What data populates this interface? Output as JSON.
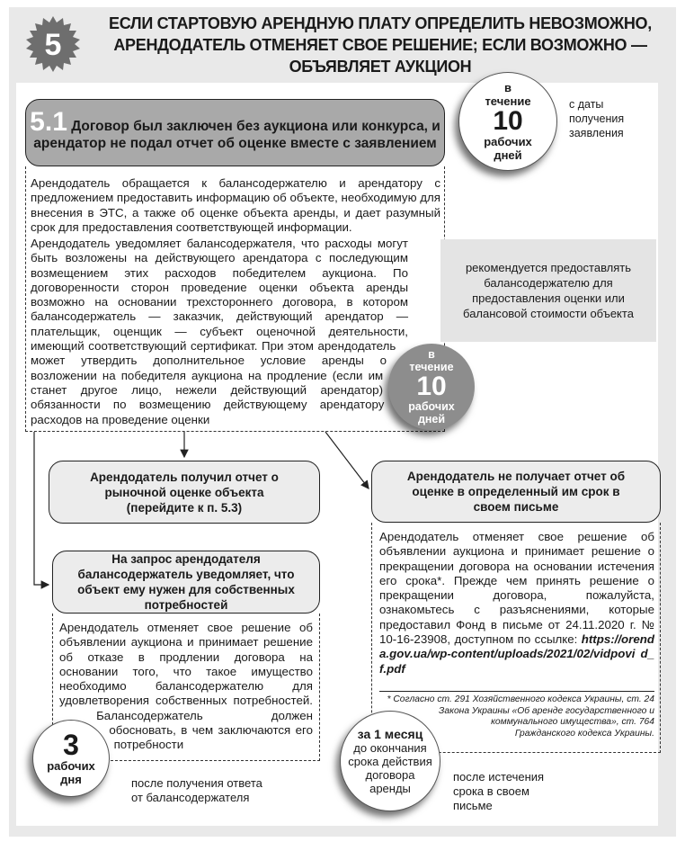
{
  "badge": {
    "number": "5"
  },
  "title": "ЕСЛИ СТАРТОВУЮ АРЕНДНУЮ ПЛАТУ ОПРЕДЕЛИТЬ НЕВОЗМОЖНО, АРЕНДОДАТЕЛЬ ОТМЕНЯЕТ СВОЕ РЕШЕНИЕ; ЕСЛИ ВОЗМОЖНО — ОБЪЯВЛЯЕТ АУКЦИОН",
  "section": {
    "number": "5.1",
    "heading": "Договор был заключен без аукциона или конкурса, и арендатор не подал отчет об оценке вместе с заявлением"
  },
  "main_text_1": "Арендодатель обращается к балансодержателю и арендатору с предложением предоставить информацию об объекте, необходимую для внесения в ЭТС, а также об оценке объекта аренды, и дает разумный срок для предоставления соответствующей информации.",
  "main_text_2": "Арендодатель уведомляет балансодержателя, что расходы могут быть возложены на действующего арендатора с последующим возмещением этих расходов победителем аукциона. По договоренности сторон проведение оценки объекта аренды возможно на основании трехстороннего договора, в котором балансодержатель — заказчик, действующий арендатор — плательщик, оценщик — субъект оценочной деятельности, имеющий соответствующий сертификат. При этом арендодатель может утвердить дополнительное условие аренды о возложении на победителя аукциона на продление (если им станет другое лицо, нежели действующий арендатор) обязанности по возмещению действующему арендатору расходов на проведение оценки",
  "timer_top": {
    "pre1": "в",
    "pre2": "течение",
    "number": "10",
    "post1": "рабочих",
    "post2": "дней",
    "note": "с даты получения заявления"
  },
  "recommendation": "рекомендуется предоставлять балансодержателю для предоставления оценки или балансовой стоимости объекта",
  "timer_mid": {
    "pre1": "в",
    "pre2": "течение",
    "number": "10",
    "post1": "рабочих",
    "post2": "дней"
  },
  "branch_received": "Арендодатель получил отчет о рыночной оценке объекта (перейдите к п. 5.3)",
  "branch_own_needs": {
    "heading": "На запрос арендодателя балансодержатель уведомляет, что объект ему нужен для собственных потребностей",
    "text": "Арендодатель отменяет свое решение об объявлении аукциона и принимает решение об отказе в продлении договора на основании того, что такое имущество необходимо балансодержателю для удовлетворения собственных потребностей. Балансодержатель должен обосновать, в чем заключаются его потребности"
  },
  "branch_not_received": {
    "heading": "Арендодатель не получает отчет об оценке в определенный им срок в своем письме",
    "text": "Арендодатель отменяет свое решение об объявлении аукциона и принимает решение о прекращении договора на основании истечения его срока*. Прежде чем принять решение о прекращении договора, пожалуйста, ознакомьтесь с разъяснениями, которые предоставил Фонд в письме от 24.11.2020 г. № 10-16-23908, доступном по ссылке: ",
    "link": "https://orenda.gov.ua/wp-content/uploads/2021/02/vidpovi d_f.pdf",
    "footnote": "* Согласно ст. 291 Хозяйственного кодекса Украины, ст. 24 Закона Украины «Об аренде государственного и коммунального имущества», ст. 764 Гражданского кодекса Украины."
  },
  "timer_3": {
    "number": "3",
    "post1": "рабочих",
    "post2": "дня",
    "note": "после получения ответа от балансодержателя"
  },
  "timer_month": {
    "bold": "за 1 месяц",
    "rest": "до окончания срока действия договора аренды",
    "note": "после истечения срока в своем письме"
  }
}
